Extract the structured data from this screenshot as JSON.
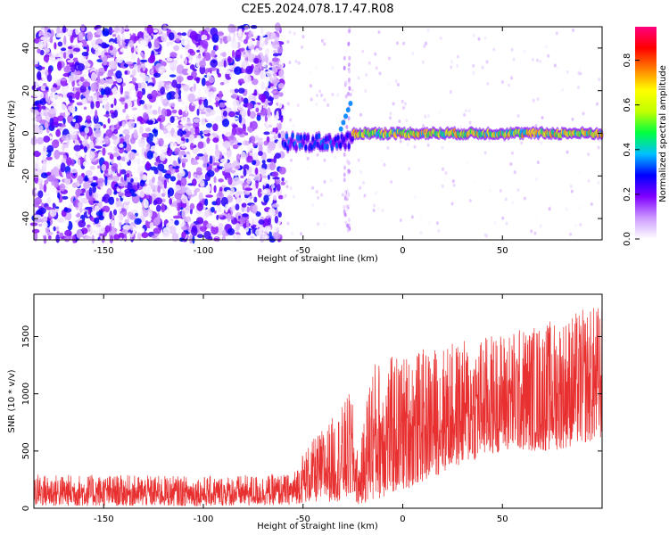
{
  "title": "C2E5.2024.078.17.47.R08",
  "chart_data": [
    {
      "type": "heatmap",
      "xlabel": "Height of straight line (km)",
      "ylabel": "Frequency (Hz)",
      "xlim": [
        -185,
        100
      ],
      "ylim": [
        -50,
        50
      ],
      "x_ticks": [
        -150,
        -100,
        -50,
        0,
        50
      ],
      "y_ticks": [
        -40,
        -20,
        0,
        20,
        40
      ],
      "colorbar": {
        "label": "Normalized spectral amplitude",
        "range": [
          0,
          0.95
        ],
        "ticks": [
          "0.0",
          "0.2",
          "0.4",
          "0.6",
          "0.8"
        ],
        "colormap": [
          "#ffffff",
          "#cc99ff",
          "#8000ff",
          "#0000ff",
          "#00c0ff",
          "#00ff40",
          "#c0ff00",
          "#ffff00",
          "#ff8000",
          "#ff0000",
          "#ff0080"
        ]
      },
      "regions": [
        {
          "x_range": [
            -185,
            -60
          ],
          "description": "broadband noise",
          "amplitude": 0.1
        },
        {
          "x_range": [
            -60,
            -25
          ],
          "signal_freq_hz": -4,
          "amplitude": 0.35
        },
        {
          "x_range": [
            -25,
            100
          ],
          "signal_freq_hz": 0,
          "amplitude": 0.75
        }
      ],
      "grid": false
    },
    {
      "type": "line",
      "xlabel": "Height of straight line (km)",
      "ylabel": "SNR (10 * v/v)",
      "xlim": [
        -185,
        100
      ],
      "ylim": [
        0,
        1870
      ],
      "x_ticks": [
        -150,
        -100,
        -50,
        0,
        50
      ],
      "y_ticks": [
        0,
        500,
        1000,
        1500
      ],
      "series": [
        {
          "color": "#e83030",
          "envelope": [
            {
              "x": -185,
              "low": 20,
              "high": 300
            },
            {
              "x": -100,
              "low": 20,
              "high": 280
            },
            {
              "x": -55,
              "low": 30,
              "high": 300
            },
            {
              "x": -50,
              "low": 50,
              "high": 500
            },
            {
              "x": -30,
              "low": 60,
              "high": 900
            },
            {
              "x": -26,
              "low": 80,
              "high": 1050
            },
            {
              "x": -22,
              "low": 30,
              "high": 400
            },
            {
              "x": -16,
              "low": 60,
              "high": 1300
            },
            {
              "x": 0,
              "low": 150,
              "high": 1350
            },
            {
              "x": 25,
              "low": 350,
              "high": 1450
            },
            {
              "x": 50,
              "low": 500,
              "high": 1550
            },
            {
              "x": 75,
              "low": 500,
              "high": 1650
            },
            {
              "x": 100,
              "low": 600,
              "high": 1800
            }
          ]
        }
      ],
      "grid": false
    }
  ]
}
